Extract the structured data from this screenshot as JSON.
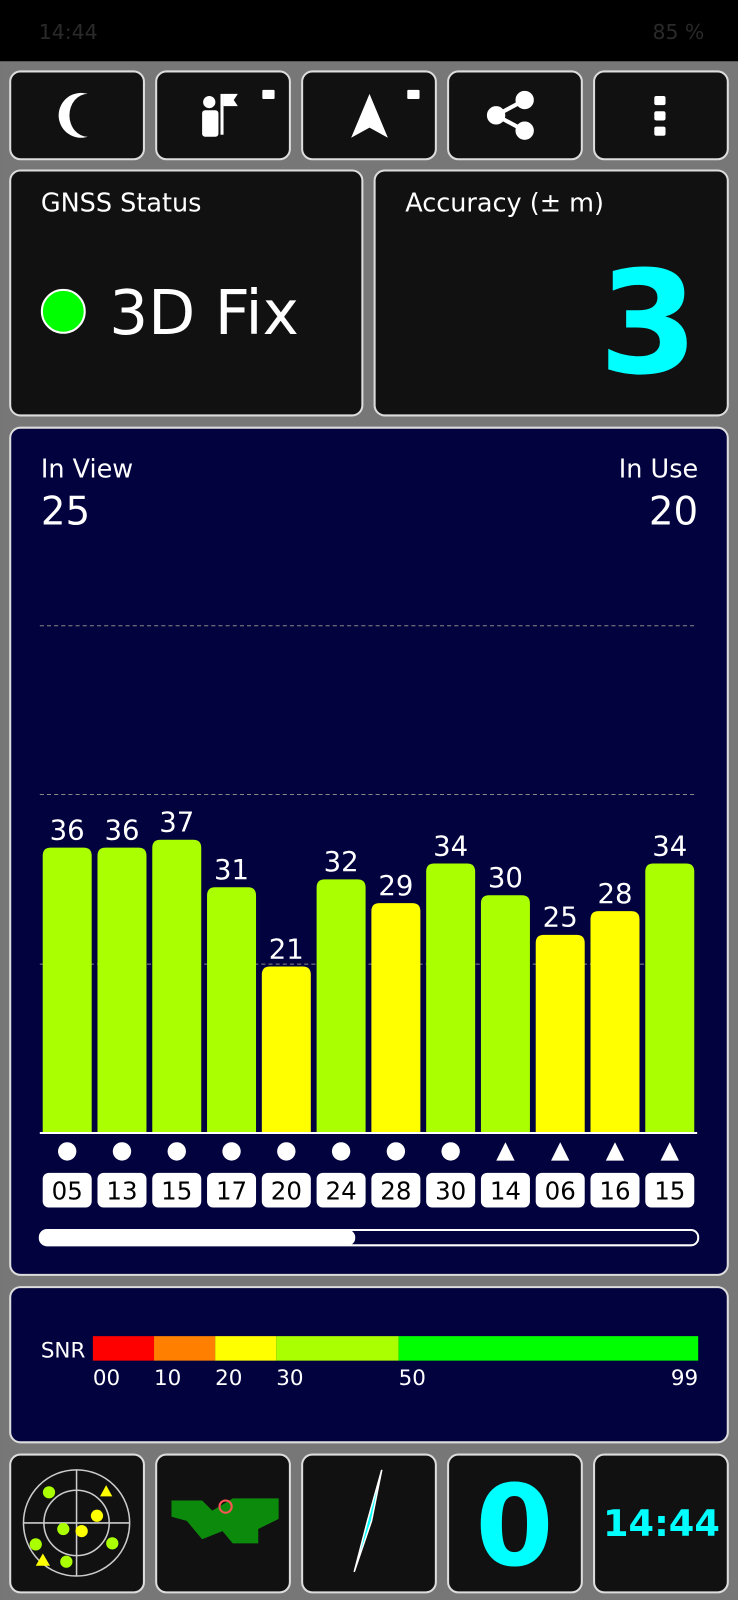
{
  "status_bar": {
    "time": "14:44",
    "battery": "85 %"
  },
  "gnss_status": {
    "title": "GNSS Status",
    "value": "3D Fix"
  },
  "accuracy": {
    "title": "Accuracy (± m)",
    "value": 3
  },
  "satellites": {
    "in_view_label": "In View",
    "in_view": 25,
    "in_use_label": "In Use",
    "in_use": 20
  },
  "chart_data": {
    "type": "bar",
    "categories": [
      "05",
      "13",
      "15",
      "17",
      "20",
      "24",
      "28",
      "30",
      "14",
      "06",
      "16",
      "15"
    ],
    "values": [
      36,
      36,
      37,
      31,
      21,
      32,
      29,
      34,
      30,
      25,
      28,
      34
    ],
    "colors": [
      "#aaff00",
      "#aaff00",
      "#aaff00",
      "#aaff00",
      "#ffff00",
      "#aaff00",
      "#ffff00",
      "#aaff00",
      "#aaff00",
      "#ffff00",
      "#ffff00",
      "#aaff00"
    ],
    "markers": [
      "circle",
      "circle",
      "circle",
      "circle",
      "circle",
      "circle",
      "circle",
      "circle",
      "triangle",
      "triangle",
      "triangle",
      "triangle"
    ],
    "ylim": [
      0,
      64
    ],
    "gridlines": [
      21.3,
      42.7,
      64
    ]
  },
  "snr_legend": {
    "label": "SNR",
    "ticks": [
      {
        "value": 0,
        "label": "00"
      },
      10,
      20,
      30,
      50,
      99
    ],
    "colors": [
      "#ff0000",
      "#ff8000",
      "#ffff00",
      "#aaff00",
      "#00ff00"
    ]
  },
  "bottom_bar": {
    "bearing": 0,
    "clock": "14:44"
  }
}
